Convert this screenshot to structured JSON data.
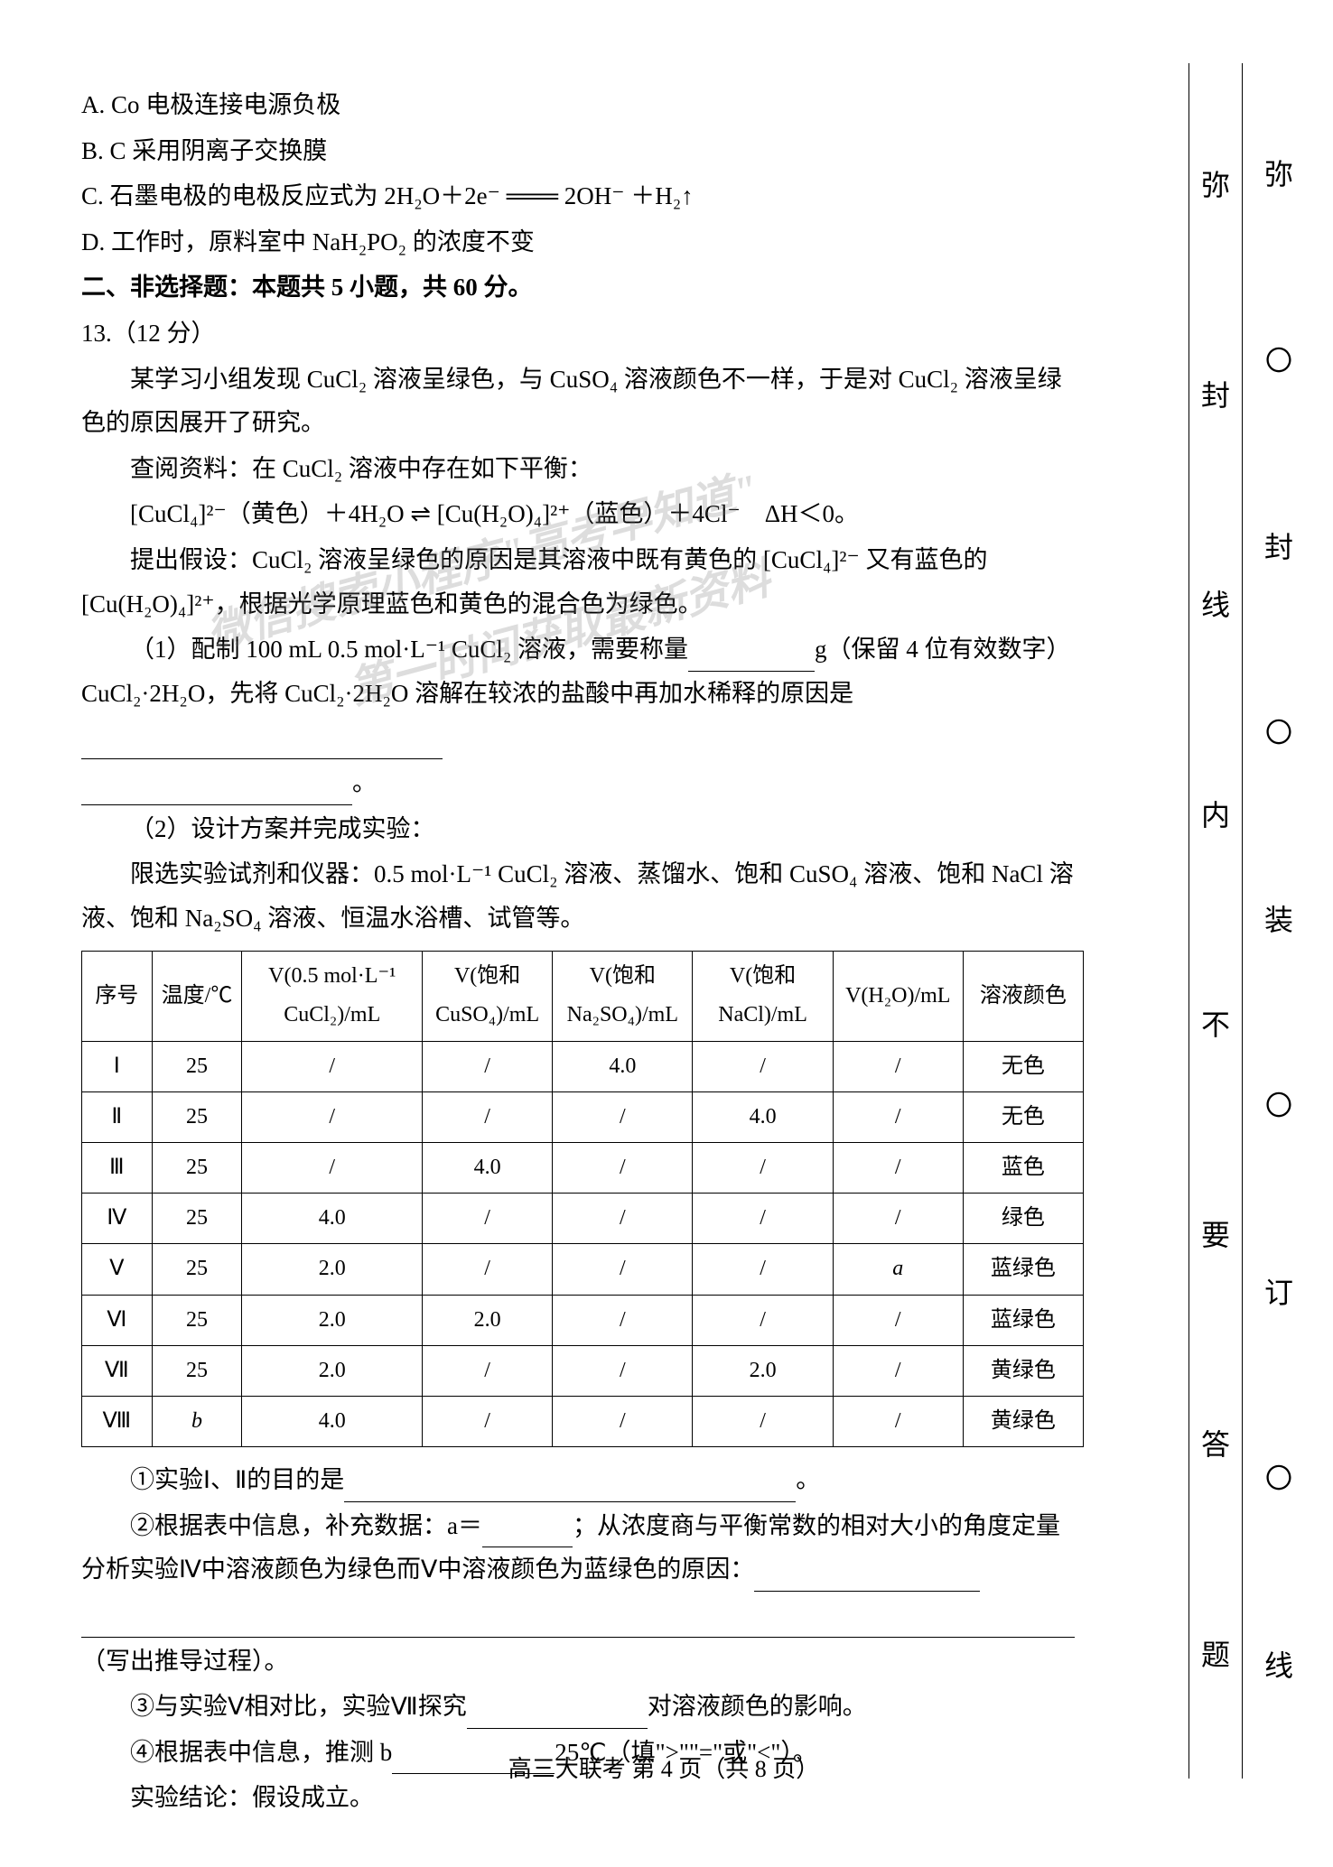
{
  "options": {
    "A": "A. Co 电极连接电源负极",
    "B": "B. C 采用阴离子交换膜",
    "C": "C. 石墨电极的电极反应式为 2H₂O＋2e⁻ ═══ 2OH⁻ ＋H₂↑",
    "D": "D. 工作时，原料室中 NaH₂PO₂ 的浓度不变"
  },
  "section2_title": "二、非选择题：本题共 5 小题，共 60 分。",
  "q13_num": "13.（12 分）",
  "q13_p1": "某学习小组发现 CuCl₂ 溶液呈绿色，与 CuSO₄ 溶液颜色不一样，于是对 CuCl₂ 溶液呈绿色的原因展开了研究。",
  "q13_p2": "查阅资料：在 CuCl₂ 溶液中存在如下平衡：",
  "q13_eq": "[CuCl₄]²⁻（黄色）＋4H₂O ⇌ [Cu(H₂O)₄]²⁺（蓝色）＋4Cl⁻　ΔH＜0。",
  "q13_p3": "提出假设：CuCl₂ 溶液呈绿色的原因是其溶液中既有黄色的 [CuCl₄]²⁻ 又有蓝色的 [Cu(H₂O)₄]²⁺，根据光学原理蓝色和黄色的混合色为绿色。",
  "q13_sub1_a": "（1）配制 100 mL 0.5 mol·L⁻¹ CuCl₂ 溶液，需要称量",
  "q13_sub1_b": "g（保留 4 位有效数字）CuCl₂·2H₂O，先将 CuCl₂·2H₂O 溶解在较浓的盐酸中再加水稀释的原因是",
  "q13_sub1_c": "。",
  "q13_sub2_head": "（2）设计方案并完成实验：",
  "q13_sub2_limit": "限选实验试剂和仪器：0.5 mol·L⁻¹ CuCl₂ 溶液、蒸馏水、饱和 CuSO₄ 溶液、饱和 NaCl 溶液、饱和 Na₂SO₄ 溶液、恒温水浴槽、试管等。",
  "table": {
    "columns": [
      "序号",
      "温度/℃",
      "V(0.5 mol·L⁻¹ CuCl₂)/mL",
      "V(饱和 CuSO₄)/mL",
      "V(饱和 Na₂SO₄)/mL",
      "V(饱和 NaCl)/mL",
      "V(H₂O)/mL",
      "溶液颜色"
    ],
    "rows": [
      [
        "Ⅰ",
        "25",
        "/",
        "/",
        "4.0",
        "/",
        "/",
        "无色"
      ],
      [
        "Ⅱ",
        "25",
        "/",
        "/",
        "/",
        "4.0",
        "/",
        "无色"
      ],
      [
        "Ⅲ",
        "25",
        "/",
        "4.0",
        "/",
        "/",
        "/",
        "蓝色"
      ],
      [
        "Ⅳ",
        "25",
        "4.0",
        "/",
        "/",
        "/",
        "/",
        "绿色"
      ],
      [
        "Ⅴ",
        "25",
        "2.0",
        "/",
        "/",
        "/",
        "a",
        "蓝绿色"
      ],
      [
        "Ⅵ",
        "25",
        "2.0",
        "2.0",
        "/",
        "/",
        "/",
        "蓝绿色"
      ],
      [
        "Ⅶ",
        "25",
        "2.0",
        "/",
        "/",
        "2.0",
        "/",
        "黄绿色"
      ],
      [
        "Ⅷ",
        "b",
        "4.0",
        "/",
        "/",
        "/",
        "/",
        "黄绿色"
      ]
    ],
    "col_widths": [
      "7%",
      "9%",
      "18%",
      "13%",
      "14%",
      "14%",
      "13%",
      "12%"
    ]
  },
  "q13_q1_a": "①实验Ⅰ、Ⅱ的目的是",
  "q13_q1_b": "。",
  "q13_q2_a": "②根据表中信息，补充数据：a＝",
  "q13_q2_b": "；从浓度商与平衡常数的相对大小的角度定量分析实验Ⅳ中溶液颜色为绿色而Ⅴ中溶液颜色为蓝绿色的原因：",
  "q13_q2_c": "（写出推导过程）。",
  "q13_q3_a": "③与实验Ⅴ相对比，实验Ⅶ探究",
  "q13_q3_b": "对溶液颜色的影响。",
  "q13_q4_a": "④根据表中信息，推测 b",
  "q13_q4_b": "25℃（填\">\"\"=\"或\"<\"）。",
  "q13_conclusion": "实验结论：假设成立。",
  "footer": "高三大联考 第 4 页（共 8 页）",
  "side_inner": [
    "弥",
    "封",
    "线",
    "内",
    "不",
    "要",
    "答",
    "题"
  ],
  "side_outer": [
    "弥",
    "〇",
    "封",
    "〇",
    "装",
    "〇",
    "订",
    "〇",
    "线"
  ],
  "watermarks": {
    "w1": "微信搜索小程序\"高考早知道\"",
    "w2": "第一时间获取最新资料"
  },
  "colors": {
    "text": "#000000",
    "bg": "#ffffff",
    "border": "#000000",
    "watermark": "rgba(120,120,120,0.25)"
  }
}
